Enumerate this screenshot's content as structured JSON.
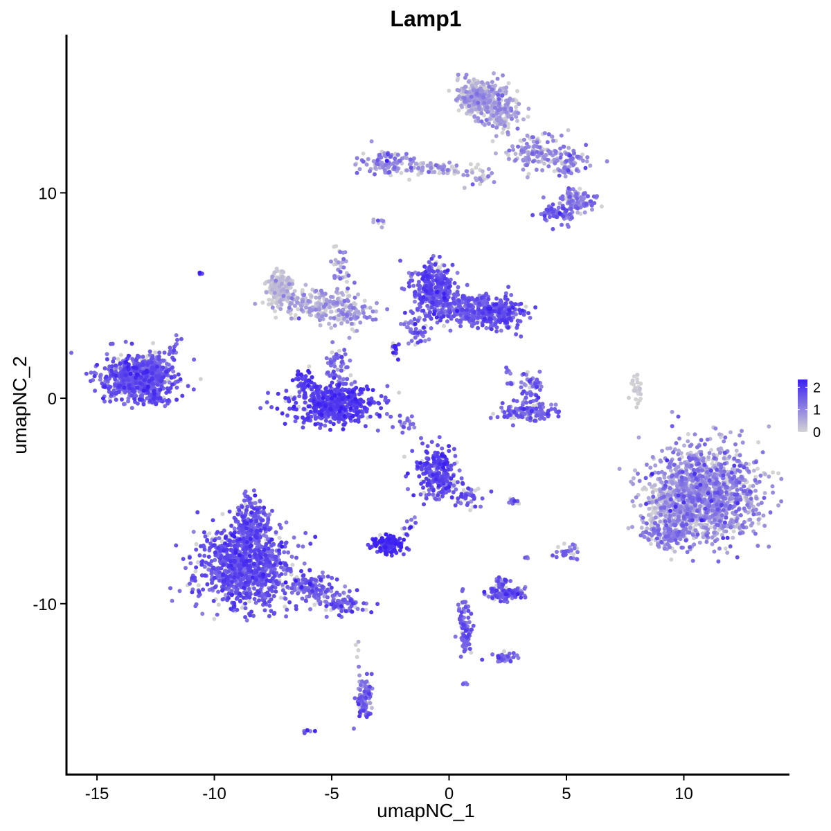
{
  "chart_data": {
    "type": "scatter",
    "title": "Lamp1",
    "xlabel": "umapNC_1",
    "ylabel": "umapNC_2",
    "xlim": [
      -16.3,
      14.5
    ],
    "ylim": [
      -18.3,
      17.7
    ],
    "x_ticks": [
      -15,
      -10,
      -5,
      0,
      5,
      10
    ],
    "x_tick_labels": [
      "-15",
      "-10",
      "-5",
      "0",
      "5",
      "10"
    ],
    "y_ticks": [
      -10,
      0,
      10
    ],
    "y_tick_labels": [
      "-10",
      "0",
      "10"
    ],
    "grid": false,
    "legend": {
      "placement": "right",
      "type": "colorbar",
      "ticks": [
        0,
        1,
        2
      ],
      "tick_labels": [
        "0",
        "1",
        "2"
      ],
      "range": [
        0,
        2.35
      ],
      "low_color": "#d3d3d3",
      "high_color": "#3b1ff2"
    },
    "point_color_scale": {
      "low": "#d3d3d3",
      "high": "#3b1ff2"
    },
    "clusters": [
      {
        "cx": -13.2,
        "cy": 1.0,
        "sx": 0.75,
        "sy": 0.55,
        "n": 650,
        "expr": 1.55,
        "expr_sd": 0.3
      },
      {
        "cx": -12.4,
        "cy": 1.8,
        "sx": 0.4,
        "sy": 0.45,
        "n": 60,
        "expr": 1.45,
        "expr_sd": 0.3
      },
      {
        "cx": -12.3,
        "cy": -0.05,
        "sx": 0.3,
        "sy": 0.1,
        "n": 35,
        "expr": 1.7,
        "expr_sd": 0.25
      },
      {
        "cx": -7.2,
        "cy": 5.3,
        "sx": 0.25,
        "sy": 0.35,
        "n": 220,
        "expr": 0.15,
        "expr_sd": 0.25
      },
      {
        "cx": -5.9,
        "cy": 4.6,
        "sx": 0.8,
        "sy": 0.35,
        "n": 160,
        "expr": 0.45,
        "expr_sd": 0.45
      },
      {
        "cx": -4.3,
        "cy": 4.1,
        "sx": 0.6,
        "sy": 0.4,
        "n": 90,
        "expr": 0.7,
        "expr_sd": 0.45
      },
      {
        "cx": -4.6,
        "cy": 6.3,
        "sx": 0.25,
        "sy": 0.7,
        "n": 40,
        "expr": 0.8,
        "expr_sd": 0.45
      },
      {
        "cx": -4.9,
        "cy": -0.3,
        "sx": 0.95,
        "sy": 0.45,
        "n": 520,
        "expr": 1.85,
        "expr_sd": 0.25
      },
      {
        "cx": -4.8,
        "cy": 1.3,
        "sx": 0.25,
        "sy": 0.55,
        "n": 60,
        "expr": 1.35,
        "expr_sd": 0.35
      },
      {
        "cx": -6.2,
        "cy": 0.8,
        "sx": 0.2,
        "sy": 0.3,
        "n": 40,
        "expr": 2.0,
        "expr_sd": 0.2
      },
      {
        "cx": -0.6,
        "cy": 5.3,
        "sx": 0.45,
        "sy": 0.6,
        "n": 320,
        "expr": 1.6,
        "expr_sd": 0.3
      },
      {
        "cx": 0.9,
        "cy": 4.3,
        "sx": 0.85,
        "sy": 0.35,
        "n": 280,
        "expr": 1.5,
        "expr_sd": 0.3
      },
      {
        "cx": 2.2,
        "cy": 4.1,
        "sx": 0.45,
        "sy": 0.4,
        "n": 160,
        "expr": 1.6,
        "expr_sd": 0.3
      },
      {
        "cx": -1.4,
        "cy": 3.4,
        "sx": 0.3,
        "sy": 0.4,
        "n": 50,
        "expr": 1.4,
        "expr_sd": 0.35
      },
      {
        "cx": -2.3,
        "cy": 2.4,
        "sx": 0.1,
        "sy": 0.2,
        "n": 15,
        "expr": 2.1,
        "expr_sd": 0.2
      },
      {
        "cx": 1.3,
        "cy": 14.7,
        "sx": 0.5,
        "sy": 0.45,
        "n": 280,
        "expr": 0.45,
        "expr_sd": 0.4
      },
      {
        "cx": 2.2,
        "cy": 14.1,
        "sx": 0.45,
        "sy": 0.55,
        "n": 180,
        "expr": 0.55,
        "expr_sd": 0.4
      },
      {
        "cx": 3.6,
        "cy": 12.0,
        "sx": 0.55,
        "sy": 0.45,
        "n": 110,
        "expr": 0.75,
        "expr_sd": 0.4
      },
      {
        "cx": 5.0,
        "cy": 11.6,
        "sx": 0.5,
        "sy": 0.35,
        "n": 90,
        "expr": 0.8,
        "expr_sd": 0.4
      },
      {
        "cx": 5.5,
        "cy": 9.7,
        "sx": 0.4,
        "sy": 0.3,
        "n": 100,
        "expr": 1.1,
        "expr_sd": 0.35
      },
      {
        "cx": 4.6,
        "cy": 9.0,
        "sx": 0.35,
        "sy": 0.25,
        "n": 70,
        "expr": 1.45,
        "expr_sd": 0.3
      },
      {
        "cx": -2.6,
        "cy": 11.5,
        "sx": 0.6,
        "sy": 0.3,
        "n": 120,
        "expr": 0.85,
        "expr_sd": 0.45
      },
      {
        "cx": -0.5,
        "cy": 11.2,
        "sx": 0.7,
        "sy": 0.15,
        "n": 60,
        "expr": 0.55,
        "expr_sd": 0.45
      },
      {
        "cx": 1.2,
        "cy": 10.8,
        "sx": 0.4,
        "sy": 0.35,
        "n": 25,
        "expr": 0.6,
        "expr_sd": 0.45
      },
      {
        "cx": -3.0,
        "cy": 8.6,
        "sx": 0.15,
        "sy": 0.12,
        "n": 8,
        "expr": 0.9,
        "expr_sd": 0.4
      },
      {
        "cx": 3.3,
        "cy": -0.7,
        "sx": 0.65,
        "sy": 0.2,
        "n": 120,
        "expr": 1.4,
        "expr_sd": 0.35
      },
      {
        "cx": 3.5,
        "cy": 0.6,
        "sx": 0.25,
        "sy": 0.4,
        "n": 50,
        "expr": 1.3,
        "expr_sd": 0.35
      },
      {
        "cx": 2.6,
        "cy": 0.9,
        "sx": 0.1,
        "sy": 0.3,
        "n": 10,
        "expr": 1.4,
        "expr_sd": 0.3
      },
      {
        "cx": 8.0,
        "cy": 0.4,
        "sx": 0.15,
        "sy": 0.35,
        "n": 25,
        "expr": 0.05,
        "expr_sd": 0.1
      },
      {
        "cx": 10.9,
        "cy": -4.6,
        "sx": 1.15,
        "sy": 1.15,
        "n": 1200,
        "expr": 0.85,
        "expr_sd": 0.45
      },
      {
        "cx": 9.4,
        "cy": -5.3,
        "sx": 0.6,
        "sy": 0.7,
        "n": 220,
        "expr": 0.35,
        "expr_sd": 0.35
      },
      {
        "cx": 9.3,
        "cy": -6.7,
        "sx": 0.5,
        "sy": 0.3,
        "n": 120,
        "expr": 1.0,
        "expr_sd": 0.4
      },
      {
        "cx": -0.5,
        "cy": -3.7,
        "sx": 0.45,
        "sy": 0.6,
        "n": 260,
        "expr": 1.7,
        "expr_sd": 0.3
      },
      {
        "cx": 0.8,
        "cy": -4.8,
        "sx": 0.35,
        "sy": 0.3,
        "n": 40,
        "expr": 1.5,
        "expr_sd": 0.35
      },
      {
        "cx": -2.6,
        "cy": -7.1,
        "sx": 0.35,
        "sy": 0.22,
        "n": 130,
        "expr": 2.1,
        "expr_sd": 0.2
      },
      {
        "cx": -1.7,
        "cy": -6.1,
        "sx": 0.15,
        "sy": 0.3,
        "n": 12,
        "expr": 1.8,
        "expr_sd": 0.3
      },
      {
        "cx": -8.7,
        "cy": -8.2,
        "sx": 1.0,
        "sy": 1.0,
        "n": 950,
        "expr": 1.6,
        "expr_sd": 0.3
      },
      {
        "cx": -8.5,
        "cy": -6.0,
        "sx": 0.4,
        "sy": 0.6,
        "n": 170,
        "expr": 1.55,
        "expr_sd": 0.3
      },
      {
        "cx": -6.0,
        "cy": -9.2,
        "sx": 0.55,
        "sy": 0.35,
        "n": 140,
        "expr": 1.35,
        "expr_sd": 0.35
      },
      {
        "cx": -4.5,
        "cy": -10.0,
        "sx": 0.5,
        "sy": 0.25,
        "n": 80,
        "expr": 1.5,
        "expr_sd": 0.3
      },
      {
        "cx": 2.5,
        "cy": -9.5,
        "sx": 0.4,
        "sy": 0.18,
        "n": 110,
        "expr": 1.5,
        "expr_sd": 0.3
      },
      {
        "cx": 2.2,
        "cy": -8.9,
        "sx": 0.2,
        "sy": 0.12,
        "n": 15,
        "expr": 1.4,
        "expr_sd": 0.3
      },
      {
        "cx": 0.7,
        "cy": -11.6,
        "sx": 0.15,
        "sy": 0.5,
        "n": 60,
        "expr": 1.5,
        "expr_sd": 0.3
      },
      {
        "cx": 0.6,
        "cy": -10.3,
        "sx": 0.12,
        "sy": 0.5,
        "n": 30,
        "expr": 1.4,
        "expr_sd": 0.3
      },
      {
        "cx": 2.3,
        "cy": -12.6,
        "sx": 0.3,
        "sy": 0.15,
        "n": 40,
        "expr": 1.4,
        "expr_sd": 0.3
      },
      {
        "cx": -3.6,
        "cy": -14.6,
        "sx": 0.18,
        "sy": 0.6,
        "n": 80,
        "expr": 1.3,
        "expr_sd": 0.35
      },
      {
        "cx": -3.9,
        "cy": -12.5,
        "sx": 0.05,
        "sy": 0.35,
        "n": 5,
        "expr": 0.4,
        "expr_sd": 0.3
      },
      {
        "cx": 5.0,
        "cy": -7.5,
        "sx": 0.25,
        "sy": 0.25,
        "n": 30,
        "expr": 1.4,
        "expr_sd": 0.3
      },
      {
        "cx": 2.8,
        "cy": -5.0,
        "sx": 0.15,
        "sy": 0.08,
        "n": 10,
        "expr": 1.4,
        "expr_sd": 0.3
      },
      {
        "cx": 3.3,
        "cy": -7.7,
        "sx": 0.08,
        "sy": 0.08,
        "n": 4,
        "expr": 1.3,
        "expr_sd": 0.3
      },
      {
        "cx": 0.6,
        "cy": -13.9,
        "sx": 0.08,
        "sy": 0.06,
        "n": 5,
        "expr": 1.3,
        "expr_sd": 0.3
      },
      {
        "cx": -6.0,
        "cy": -16.2,
        "sx": 0.12,
        "sy": 0.08,
        "n": 6,
        "expr": 1.4,
        "expr_sd": 0.3
      },
      {
        "cx": -10.6,
        "cy": 6.1,
        "sx": 0.05,
        "sy": 0.05,
        "n": 4,
        "expr": 1.6,
        "expr_sd": 0.3
      },
      {
        "cx": -11.7,
        "cy": 2.6,
        "sx": 0.12,
        "sy": 0.2,
        "n": 8,
        "expr": 1.4,
        "expr_sd": 0.3
      },
      {
        "cx": -1.8,
        "cy": -1.2,
        "sx": 0.35,
        "sy": 0.25,
        "n": 18,
        "expr": 1.3,
        "expr_sd": 0.3
      }
    ]
  }
}
